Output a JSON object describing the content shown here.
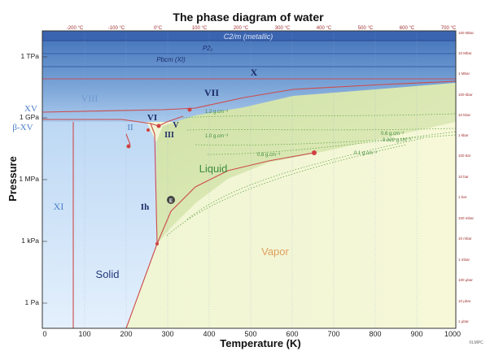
{
  "title": "The phase diagram of water",
  "x_axis": {
    "label": "Temperature (K)",
    "ticks": [
      "0",
      "100",
      "200",
      "300",
      "400",
      "500",
      "600",
      "700",
      "800",
      "900",
      "1000"
    ]
  },
  "top_axis": {
    "ticks": [
      "-200 °C",
      "-100 °C",
      "0°C",
      "100 °C",
      "200 °C",
      "300 °C",
      "400 °C",
      "500 °C",
      "600 °C",
      "700 °C"
    ]
  },
  "y_axis": {
    "label": "Pressure",
    "ticks": [
      "1 TPa",
      "1 GPa",
      "1 MPa",
      "1 kPa",
      "1 Pa"
    ]
  },
  "right_axis": {
    "ticks": [
      "100 Mbar",
      "10 Mbar",
      "1 Mbar",
      "100 kbar",
      "10 kbar",
      "1 kbar",
      "100 bar",
      "10 bar",
      "1 bar",
      "100 mbar",
      "10 mbar",
      "1 mbar",
      "100 μbar",
      "10 μbar",
      "1 μbar"
    ]
  },
  "phases": {
    "c2m": "C2/m (metallic)",
    "p21": "P2₁",
    "pbcm": "Pbcm (XI)",
    "x": "X",
    "vii": "VII",
    "viii": "VIII",
    "xv": "XV",
    "beta_xv": "β-XV",
    "vi": "VI",
    "ii": "II",
    "v": "V",
    "iii": "III",
    "xi": "XI",
    "ih": "Ih",
    "e": "E",
    "solid": "Solid",
    "liquid": "Liquid",
    "vapor": "Vapor"
  },
  "densities": [
    "1.2 g.cm⁻³",
    "1.0 g.cm⁻³",
    "0.8 g.cm⁻³",
    "0.6 g.cm⁻³",
    "0.322 g.cm⁻³",
    "0.1 g.cm⁻³"
  ],
  "credit": "©LMPC"
}
